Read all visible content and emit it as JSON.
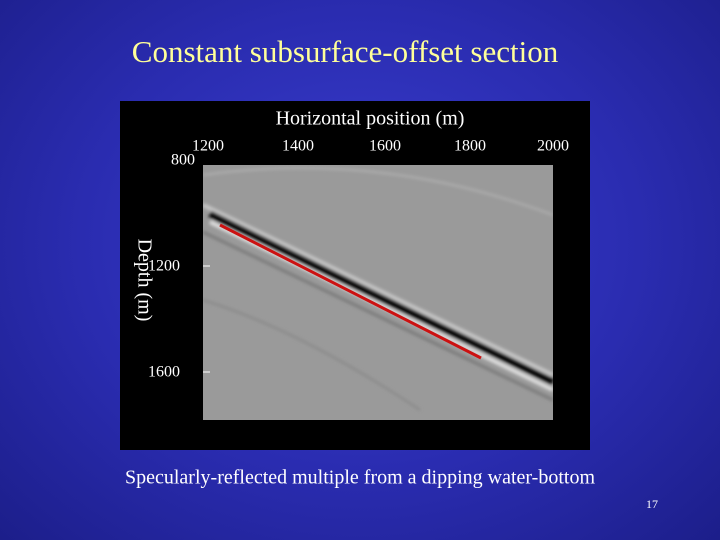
{
  "slide": {
    "title": "Constant subsurface-offset section",
    "figure": {
      "x_label": "Horizontal position (m)",
      "y_label": "Depth (m)",
      "x_ticks": [
        "1200",
        "1400",
        "1600",
        "1800",
        "2000"
      ],
      "y_ticks": [
        "800",
        "1200",
        "1600"
      ]
    },
    "caption": "Specularly-reflected multiple from a dipping water-bottom",
    "page_number": "17"
  }
}
